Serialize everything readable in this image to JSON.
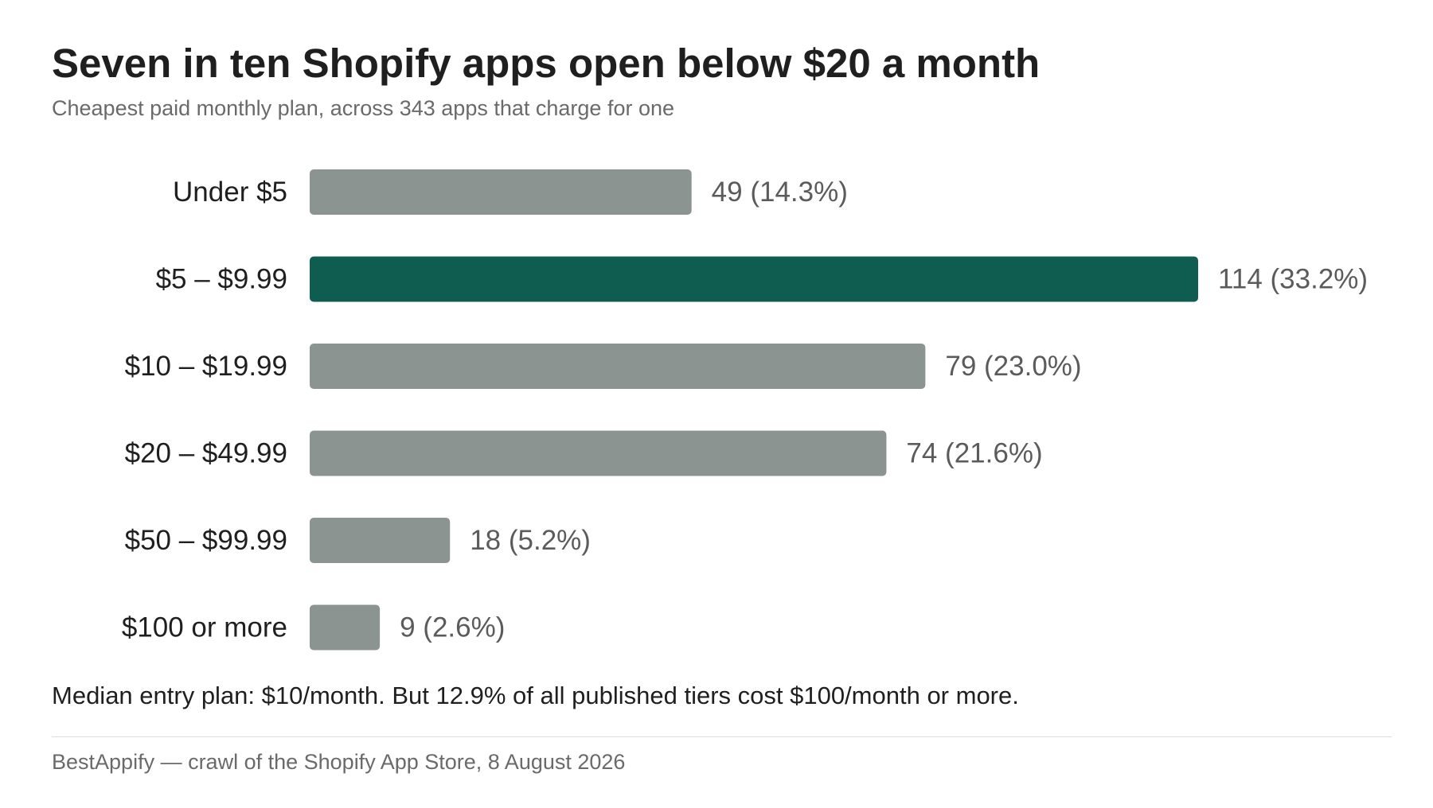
{
  "chart_data": {
    "type": "bar",
    "orientation": "horizontal",
    "title": "Seven in ten Shopify apps open below $20 a month",
    "subtitle": "Cheapest paid monthly plan, across 343 apps that charge for one",
    "categories": [
      "Under $5",
      "$5 – $9.99",
      "$10 – $19.99",
      "$20 – $49.99",
      "$50 – $99.99",
      "$100 or more"
    ],
    "values": [
      49,
      114,
      79,
      74,
      18,
      9
    ],
    "value_labels": [
      "49 (14.3%)",
      "114 (33.2%)",
      "79 (23.0%)",
      "74 (21.6%)",
      "18 (5.2%)",
      "9 (2.6%)"
    ],
    "highlight_index": 1,
    "xlim": [
      0,
      114
    ],
    "grid": false,
    "legend": "none",
    "colors": {
      "bar": "#8b9490",
      "highlight": "#0f5c50"
    }
  },
  "note": "Median entry plan: $10/month. But 12.9% of all published tiers cost $100/month or more.",
  "source": "BestAppify — crawl of the Shopify App Store, 8 August 2026"
}
